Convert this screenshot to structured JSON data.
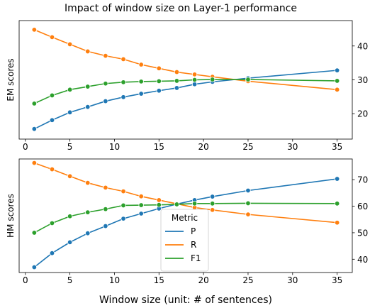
{
  "figure": {
    "title": "Impact of window size on Layer-1 performance"
  },
  "colors": {
    "P": "#1f77b4",
    "R": "#ff7f0e",
    "F1": "#2ca02c"
  },
  "chart_data": [
    {
      "type": "line",
      "ylabel": "EM scores",
      "xlabel": "",
      "xlim": [
        -0.7,
        36.7
      ],
      "ylim": [
        12.5,
        47.5
      ],
      "xticks": [
        0,
        5,
        10,
        15,
        20,
        25,
        30,
        35
      ],
      "yticks": [
        20,
        30,
        40
      ],
      "yaxis_position": "right",
      "grid": false,
      "x": [
        1,
        3,
        5,
        7,
        9,
        11,
        13,
        15,
        17,
        19,
        21,
        25,
        35
      ],
      "series": [
        {
          "name": "P",
          "values": [
            15.5,
            18.1,
            20.4,
            22.0,
            23.7,
            24.9,
            25.9,
            26.8,
            27.6,
            28.7,
            29.4,
            30.5,
            32.8
          ]
        },
        {
          "name": "R",
          "values": [
            44.8,
            42.6,
            40.5,
            38.4,
            37.1,
            36.1,
            34.5,
            33.4,
            32.3,
            31.6,
            30.9,
            29.6,
            27.1
          ]
        },
        {
          "name": "F1",
          "values": [
            23.0,
            25.4,
            27.1,
            28.0,
            28.9,
            29.3,
            29.5,
            29.6,
            29.7,
            30.0,
            30.1,
            30.1,
            29.7
          ]
        }
      ]
    },
    {
      "type": "line",
      "ylabel": "HM scores",
      "xlabel": "Window size (unit: # of sentences)",
      "xlim": [
        -0.7,
        36.7
      ],
      "ylim": [
        35.0,
        77.8
      ],
      "xticks": [
        0,
        5,
        10,
        15,
        20,
        25,
        30,
        35
      ],
      "yticks": [
        40,
        50,
        60,
        70
      ],
      "yaxis_position": "right",
      "grid": false,
      "legend": {
        "title": "Metric",
        "placement": "lower-center",
        "entries": [
          "P",
          "R",
          "F1"
        ]
      },
      "x": [
        1,
        3,
        5,
        7,
        9,
        11,
        13,
        15,
        17,
        19,
        21,
        25,
        35
      ],
      "series": [
        {
          "name": "P",
          "values": [
            37.0,
            42.3,
            46.4,
            49.8,
            52.5,
            55.3,
            57.2,
            59.1,
            60.8,
            62.3,
            63.6,
            65.9,
            70.3
          ]
        },
        {
          "name": "R",
          "values": [
            76.3,
            73.9,
            71.3,
            68.8,
            67.0,
            65.6,
            63.7,
            62.3,
            60.9,
            59.5,
            58.6,
            56.9,
            53.8
          ]
        },
        {
          "name": "F1",
          "values": [
            50.0,
            53.6,
            56.2,
            57.7,
            58.9,
            60.3,
            60.4,
            60.5,
            60.7,
            61.0,
            61.0,
            61.1,
            61.0
          ]
        }
      ]
    }
  ]
}
